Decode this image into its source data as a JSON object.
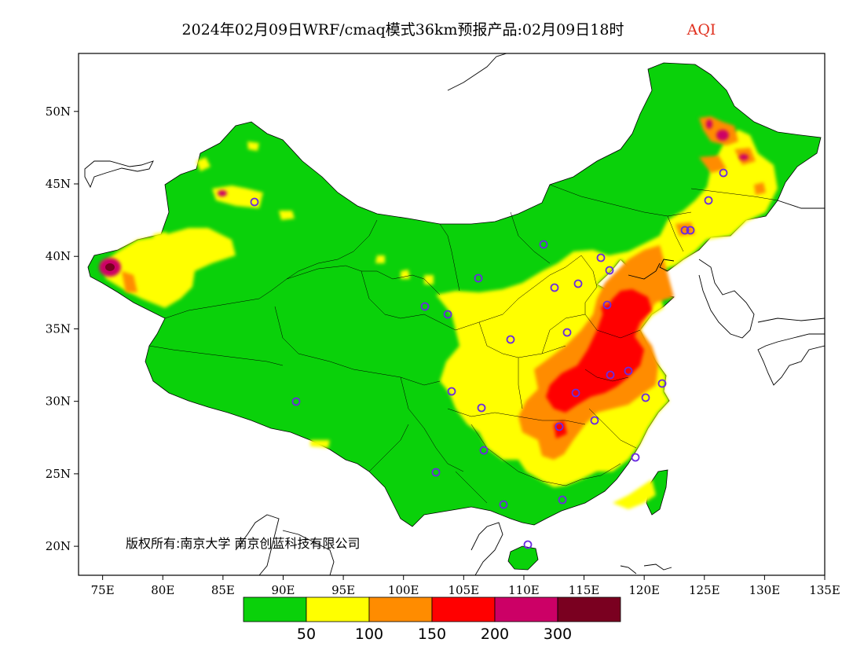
{
  "title": {
    "main": "2024年02月09日WRF/cmaq模式36km预报产品:02月09日18时",
    "variable": "AQI"
  },
  "axes": {
    "x_ticks": [
      "75E",
      "80E",
      "85E",
      "90E",
      "95E",
      "100E",
      "105E",
      "110E",
      "115E",
      "120E",
      "125E",
      "130E",
      "135E"
    ],
    "y_ticks": [
      "20N",
      "25N",
      "30N",
      "35N",
      "40N",
      "45N",
      "50N"
    ],
    "lon_range": [
      73,
      135
    ],
    "lat_range": [
      18,
      54
    ]
  },
  "legend": {
    "colors": [
      "#0ad10a",
      "#ffff00",
      "#ff8c00",
      "#ff0000",
      "#cc0066",
      "#7a0020"
    ],
    "thresholds": [
      "50",
      "100",
      "150",
      "200",
      "300"
    ]
  },
  "copyright": "版权所有:南京大学 南京创蓝科技有限公司",
  "colors": {
    "good": "#0ad10a",
    "moderate": "#ffff00",
    "sensitive": "#ff8c00",
    "unhealthy": "#ff0000",
    "very_unhealthy": "#cc0066",
    "hazardous": "#7a0020",
    "station_marker": "#6a2be0"
  }
}
